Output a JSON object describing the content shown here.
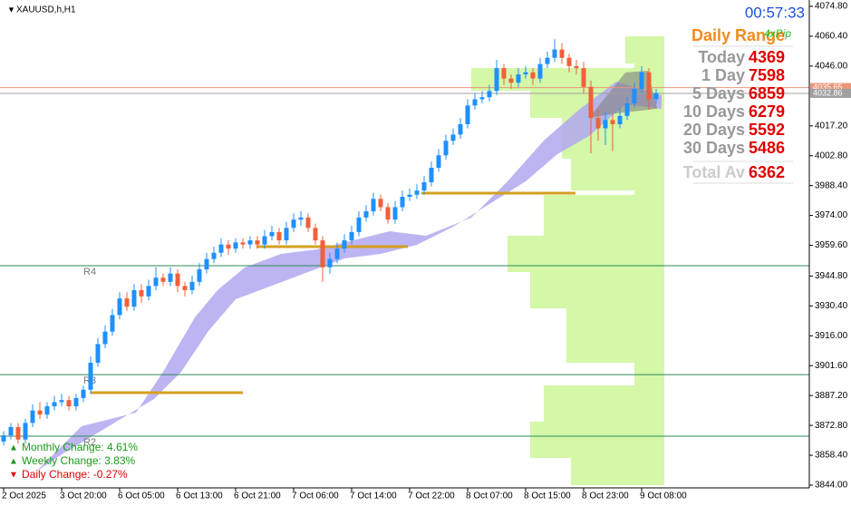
{
  "header": {
    "symbol": "XAUUSD,h,H1",
    "timer": "00:57:33"
  },
  "range_panel": {
    "title": "Daily Range",
    "brand": "4xPip",
    "rows": [
      {
        "label": "Today",
        "value": 4369
      },
      {
        "label": "1 Day",
        "value": 7598
      },
      {
        "label": "5 Days",
        "value": 6859
      },
      {
        "label": "10 Days",
        "value": 6279
      },
      {
        "label": "20 Days",
        "value": 5592
      },
      {
        "label": "30 Days",
        "value": 5486
      }
    ],
    "total": {
      "label": "Total Av",
      "value": 6362
    }
  },
  "changes": [
    {
      "text": "Monthly Change: 4.61%",
      "color": "#1a9a1a"
    },
    {
      "text": "Weekly Change: 3.83%",
      "color": "#1a9a1a"
    },
    {
      "text": "Daily Change: -0.27%",
      "color": "#e00000"
    }
  ],
  "chart_data": {
    "type": "candlestick",
    "up_color": "#1e90ff",
    "down_color": "#f0603a",
    "categories": [
      "2 Oct 2025",
      null,
      null,
      null,
      null,
      null,
      null,
      null,
      "3 Oct 20:00",
      null,
      null,
      null,
      null,
      null,
      null,
      null,
      "6 Oct 05:00",
      null,
      null,
      null,
      null,
      null,
      null,
      null,
      "6 Oct 13:00",
      null,
      null,
      null,
      null,
      null,
      null,
      null,
      "6 Oct 21:00",
      null,
      null,
      null,
      null,
      null,
      null,
      null,
      "7 Oct 06:00",
      null,
      null,
      null,
      null,
      null,
      null,
      null,
      "7 Oct 14:00",
      null,
      null,
      null,
      null,
      null,
      null,
      null,
      "7 Oct 22:00",
      null,
      null,
      null,
      null,
      null,
      null,
      null,
      "8 Oct 07:00",
      null,
      null,
      null,
      null,
      null,
      null,
      null,
      "8 Oct 15:00",
      null,
      null,
      null,
      null,
      null,
      null,
      null,
      "8 Oct 23:00",
      null,
      null,
      null,
      null,
      null,
      null,
      null,
      "9 Oct 08:00",
      null,
      null
    ],
    "ohlc": [
      [
        3865,
        3870,
        3863,
        3868
      ],
      [
        3868,
        3874,
        3866,
        3872
      ],
      [
        3872,
        3874,
        3864,
        3866
      ],
      [
        3866,
        3876,
        3864,
        3874
      ],
      [
        3874,
        3883,
        3872,
        3880
      ],
      [
        3880,
        3884,
        3876,
        3878
      ],
      [
        3878,
        3884,
        3876,
        3882
      ],
      [
        3882,
        3887,
        3880,
        3884
      ],
      [
        3884,
        3888,
        3882,
        3885
      ],
      [
        3885,
        3887,
        3880,
        3882
      ],
      [
        3882,
        3888,
        3880,
        3886
      ],
      [
        3886,
        3892,
        3884,
        3890
      ],
      [
        3890,
        3906,
        3888,
        3903
      ],
      [
        3903,
        3915,
        3901,
        3912
      ],
      [
        3912,
        3921,
        3910,
        3918
      ],
      [
        3918,
        3929,
        3916,
        3926
      ],
      [
        3926,
        3937,
        3924,
        3934
      ],
      [
        3934,
        3937,
        3928,
        3930
      ],
      [
        3930,
        3941,
        3928,
        3938
      ],
      [
        3938,
        3941,
        3932,
        3935
      ],
      [
        3935,
        3943,
        3933,
        3940
      ],
      [
        3940,
        3949,
        3938,
        3944
      ],
      [
        3944,
        3946,
        3940,
        3942
      ],
      [
        3942,
        3949,
        3940,
        3946
      ],
      [
        3946,
        3948,
        3937,
        3940
      ],
      [
        3940,
        3942,
        3935,
        3938
      ],
      [
        3938,
        3945,
        3936,
        3942
      ],
      [
        3942,
        3951,
        3940,
        3948
      ],
      [
        3948,
        3956,
        3946,
        3953
      ],
      [
        3953,
        3959,
        3951,
        3956
      ],
      [
        3956,
        3963,
        3954,
        3960
      ],
      [
        3960,
        3962,
        3955,
        3958
      ],
      [
        3958,
        3963,
        3956,
        3961
      ],
      [
        3961,
        3963,
        3958,
        3960
      ],
      [
        3960,
        3964,
        3958,
        3962
      ],
      [
        3962,
        3964,
        3958,
        3960
      ],
      [
        3960,
        3967,
        3958,
        3964
      ],
      [
        3964,
        3969,
        3962,
        3966
      ],
      [
        3966,
        3968,
        3960,
        3962
      ],
      [
        3962,
        3971,
        3960,
        3968
      ],
      [
        3968,
        3975,
        3966,
        3972
      ],
      [
        3972,
        3976,
        3969,
        3973
      ],
      [
        3973,
        3975,
        3966,
        3968
      ],
      [
        3968,
        3970,
        3960,
        3962
      ],
      [
        3962,
        3964,
        3942,
        3949
      ],
      [
        3949,
        3956,
        3946,
        3953
      ],
      [
        3953,
        3961,
        3951,
        3958
      ],
      [
        3958,
        3965,
        3956,
        3962
      ],
      [
        3962,
        3969,
        3960,
        3966
      ],
      [
        3966,
        3976,
        3964,
        3973
      ],
      [
        3973,
        3979,
        3971,
        3976
      ],
      [
        3976,
        3985,
        3974,
        3982
      ],
      [
        3982,
        3984,
        3976,
        3978
      ],
      [
        3978,
        3980,
        3970,
        3972
      ],
      [
        3972,
        3981,
        3970,
        3978
      ],
      [
        3978,
        3986,
        3976,
        3983
      ],
      [
        3983,
        3987,
        3981,
        3984
      ],
      [
        3984,
        3989,
        3982,
        3986
      ],
      [
        3986,
        3993,
        3984,
        3990
      ],
      [
        3990,
        4000,
        3988,
        3997
      ],
      [
        3997,
        4006,
        3995,
        4003
      ],
      [
        4003,
        4013,
        4001,
        4010
      ],
      [
        4010,
        4016,
        4008,
        4013
      ],
      [
        4013,
        4021,
        4011,
        4018
      ],
      [
        4018,
        4030,
        4016,
        4027
      ],
      [
        4027,
        4033,
        4025,
        4030
      ],
      [
        4030,
        4034,
        4028,
        4031
      ],
      [
        4031,
        4037,
        4029,
        4034
      ],
      [
        4034,
        4049,
        4032,
        4045
      ],
      [
        4045,
        4047,
        4037,
        4040
      ],
      [
        4040,
        4042,
        4035,
        4038
      ],
      [
        4038,
        4045,
        4036,
        4042
      ],
      [
        4042,
        4046,
        4040,
        4043
      ],
      [
        4043,
        4045,
        4037,
        4040
      ],
      [
        4040,
        4050,
        4038,
        4047
      ],
      [
        4047,
        4053,
        4045,
        4050
      ],
      [
        4050,
        4059,
        4048,
        4054
      ],
      [
        4054,
        4057,
        4047,
        4050
      ],
      [
        4050,
        4052,
        4043,
        4046
      ],
      [
        4046,
        4049,
        4042,
        4045
      ],
      [
        4045,
        4048,
        4033,
        4036
      ],
      [
        4036,
        4039,
        4004,
        4021
      ],
      [
        4021,
        4025,
        4010,
        4016
      ],
      [
        4016,
        4024,
        4008,
        4020
      ],
      [
        4020,
        4023,
        4005,
        4018
      ],
      [
        4018,
        4026,
        4016,
        4022
      ],
      [
        4022,
        4031,
        4020,
        4028
      ],
      [
        4028,
        4038,
        4026,
        4035
      ],
      [
        4035,
        4046,
        4033,
        4043
      ],
      [
        4043,
        4045,
        4025,
        4030
      ],
      [
        4030,
        4035,
        4028,
        4033
      ]
    ],
    "ylim": [
      3844,
      4074.8
    ],
    "yticks": [
      {
        "value": 4074.8,
        "label": "4074.80"
      },
      {
        "value": 4060.4,
        "label": "4060.40"
      },
      {
        "value": 4046,
        "label": "4046.00"
      },
      {
        "value": 4017.2,
        "label": "4017.20"
      },
      {
        "value": 4002.8,
        "label": "4002.80"
      },
      {
        "value": 3988.4,
        "label": "3988.40"
      },
      {
        "value": 3974,
        "label": "3974.00"
      },
      {
        "value": 3959.6,
        "label": "3959.60"
      },
      {
        "value": 3944.8,
        "label": "3944.80"
      },
      {
        "value": 3930.4,
        "label": "3930.40"
      },
      {
        "value": 3916,
        "label": "3916.00"
      },
      {
        "value": 3901.6,
        "label": "3901.60"
      },
      {
        "value": 3887.2,
        "label": "3887.20"
      },
      {
        "value": 3872.8,
        "label": "3872.80"
      },
      {
        "value": 3858.4,
        "label": "3858.40"
      },
      {
        "value": 3844,
        "label": "3844.00"
      }
    ],
    "levels": [
      {
        "name": "R4",
        "value": 3949.8
      },
      {
        "name": "R3",
        "value": 3897.3
      },
      {
        "name": "R2",
        "value": 3867.6
      }
    ],
    "price_lines": [
      {
        "value": 4035.65,
        "color": "#e8967a"
      },
      {
        "value": 4032.86,
        "color": "#a0a0a0"
      }
    ]
  }
}
